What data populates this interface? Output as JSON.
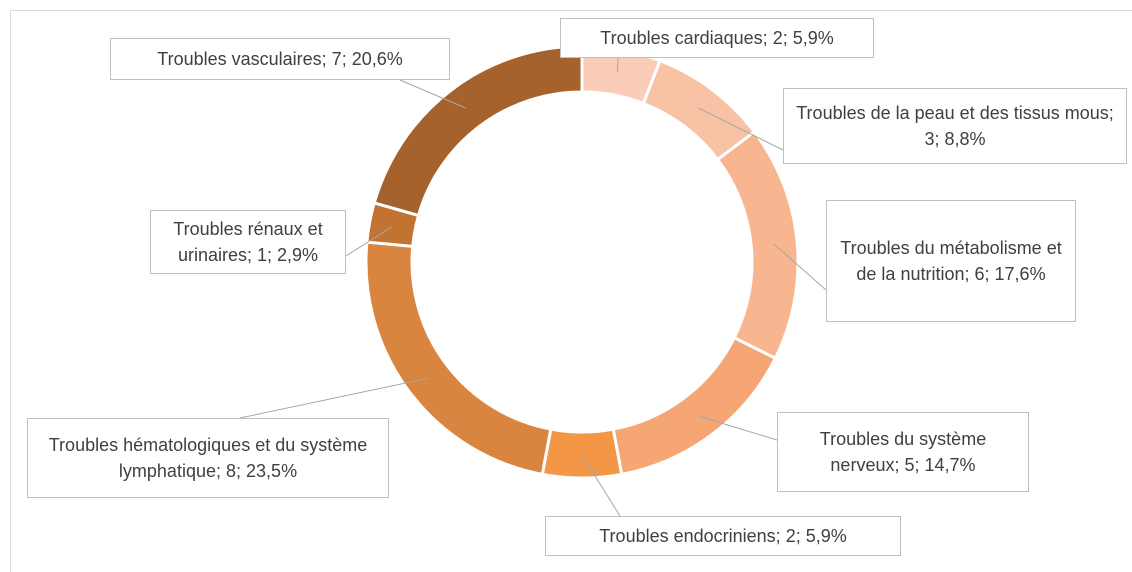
{
  "chart_data": {
    "type": "donut",
    "categories": [
      "Troubles cardiaques",
      "Troubles de la peau et des tissus mous",
      "Troubles du métabolisme et de la nutrition",
      "Troubles du système nerveux",
      "Troubles endocriniens",
      "Troubles hématologiques et du système lymphatique",
      "Troubles rénaux et urinaires",
      "Troubles vasculaires"
    ],
    "values": [
      2,
      3,
      6,
      5,
      2,
      8,
      1,
      7
    ],
    "percents": [
      5.9,
      8.8,
      17.6,
      14.7,
      5.9,
      23.5,
      2.9,
      20.6
    ],
    "percent_labels": [
      "5,9%",
      "8,8%",
      "17,6%",
      "14,7%",
      "5,9%",
      "23,5%",
      "2,9%",
      "20,6%"
    ],
    "label_separator": "; ",
    "colors": [
      "#f9cdb8",
      "#f8c2a5",
      "#f7b590",
      "#f5a673",
      "#f39646",
      "#d9843f",
      "#c27231",
      "#a6622c"
    ]
  }
}
